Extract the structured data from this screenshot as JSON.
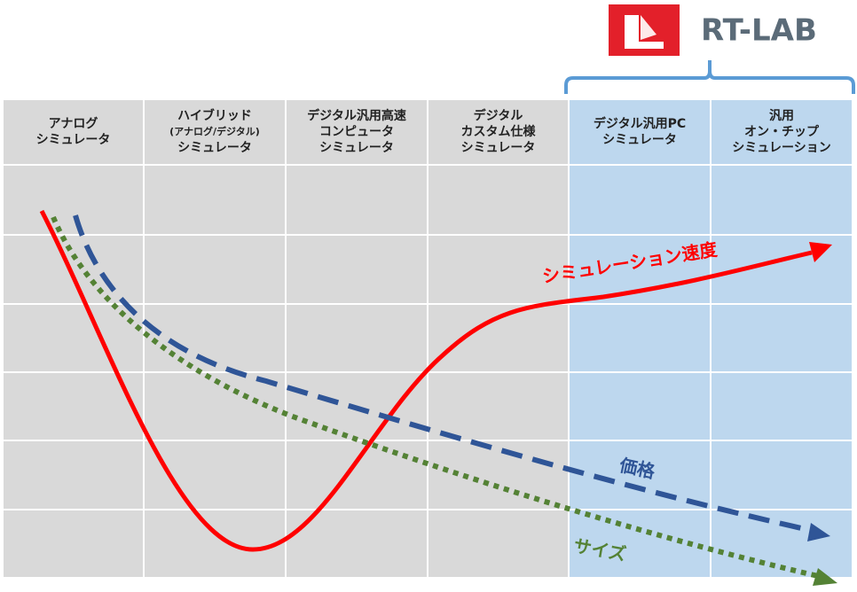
{
  "logo": {
    "text": "RT-LAB"
  },
  "columns": [
    {
      "lines": [
        "アナログ",
        "シミュレータ"
      ]
    },
    {
      "lines": [
        "ハイブリッド",
        "(アナログ/デジタル)",
        "シミュレータ"
      ]
    },
    {
      "lines": [
        "デジタル汎用高速",
        "コンピュータ",
        "シミュレータ"
      ]
    },
    {
      "lines": [
        "デジタル",
        "カスタム仕様",
        "シミュレータ"
      ]
    },
    {
      "lines": [
        "デジタル汎用PC",
        "シミュレータ"
      ]
    },
    {
      "lines": [
        "汎用",
        "オン・チップ",
        "シミュレーション"
      ]
    }
  ],
  "curves": {
    "speed": "シミュレーション速度",
    "price": "価格",
    "size": "サイズ"
  }
}
